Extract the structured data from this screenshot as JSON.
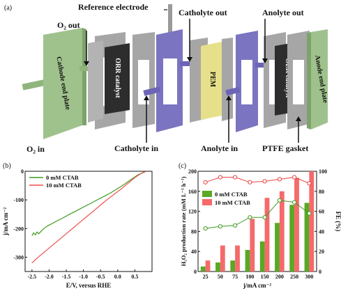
{
  "panel_a": {
    "panel_label": "(a)",
    "labels": {
      "reference_electrode": "Reference electrode",
      "o2_out": "O₂ out",
      "catholyte_out": "Catholyte out",
      "anolyte_out": "Anolyte out",
      "cathode_end_plate": "Cathode end plate",
      "orr_catalyst": "ORR catalyst",
      "pem": "PEM",
      "oer_catalyst": "OER catalyst",
      "anode_end_plate": "Anode end plate",
      "o2_in": "O₂  in",
      "catholyte_in": "Catholyte in",
      "anolyte_in": "Anolyte in",
      "ptfe_gasket": "PTFE gasket"
    },
    "colors": {
      "end_plate": "#9fc28c",
      "gasket": "#a6a6a6",
      "frame": "#7b74c0",
      "catalyst": "#2d2d2d",
      "pem": "#e6e08a"
    }
  },
  "chart_data": [
    {
      "type": "line",
      "panel_label": "(b)",
      "xlabel": "E/V, versus RHE",
      "ylabel": "j/mA cm⁻²",
      "xlim": [
        -2.7,
        1.0
      ],
      "ylim": [
        -350,
        0
      ],
      "xticks": [
        -2.5,
        -2.0,
        -1.5,
        -1.0,
        -0.5,
        0.0,
        0.5
      ],
      "xtick_labels": [
        "-2.5",
        "-2.0",
        "-1.5",
        "-1.0",
        "-0.5",
        "0.0",
        "0.5"
      ],
      "yticks": [
        -300,
        -200,
        -100,
        0
      ],
      "ytick_labels": [
        "-300",
        "-200",
        "-100",
        "0"
      ],
      "legend_position": "top-left",
      "series": [
        {
          "name": "0 mM CTAB",
          "color": "#3d9a1f",
          "x": [
            -2.5,
            -2.45,
            -2.4,
            -2.35,
            -2.3,
            -2.2,
            -2.1,
            -2.0,
            -1.9,
            -1.8,
            -1.6,
            -1.4,
            -1.2,
            -1.0,
            -0.8,
            -0.6,
            -0.4,
            -0.2,
            0.0,
            0.2,
            0.4,
            0.6,
            0.8
          ],
          "y": [
            -225,
            -215,
            -222,
            -212,
            -218,
            -205,
            -195,
            -188,
            -182,
            -175,
            -163,
            -150,
            -138,
            -125,
            -113,
            -100,
            -88,
            -75,
            -60,
            -45,
            -28,
            -12,
            -2
          ]
        },
        {
          "name": "10 mM CTAB",
          "color": "#f0504a",
          "x": [
            -2.5,
            -2.3,
            -2.1,
            -1.9,
            -1.7,
            -1.5,
            -1.3,
            -1.1,
            -0.9,
            -0.7,
            -0.5,
            -0.3,
            -0.1,
            0.1,
            0.3,
            0.5,
            0.7,
            0.8
          ],
          "y": [
            -320,
            -298,
            -278,
            -258,
            -238,
            -218,
            -198,
            -178,
            -158,
            -138,
            -118,
            -98,
            -80,
            -62,
            -42,
            -22,
            -6,
            -1
          ]
        }
      ]
    },
    {
      "type": "bar",
      "panel_label": "(c)",
      "xlabel": "j/mA cm⁻²",
      "ylabel": "H₂O₂ production rate (mM L⁻¹ h⁻¹)",
      "ylabel2": "FE (%)",
      "categories": [
        "25",
        "50",
        "75",
        "100",
        "150",
        "200",
        "250",
        "300"
      ],
      "ylim": [
        0,
        200
      ],
      "yticks": [
        0,
        40,
        80,
        120,
        160,
        200
      ],
      "ylim2": [
        0,
        100
      ],
      "yticks2": [
        0,
        20,
        40,
        60,
        80,
        100
      ],
      "legend_position": "top-left",
      "series": [
        {
          "name": "0 mM CTAB",
          "type": "bar",
          "color": "#5aa826",
          "values": [
            10,
            18,
            22,
            43,
            60,
            97,
            133,
            137
          ]
        },
        {
          "name": "10 mM CTAB",
          "type": "bar",
          "color": "#f56a6a",
          "values": [
            22,
            52,
            52,
            105,
            147,
            160,
            187,
            200
          ]
        },
        {
          "name": "FE 0 mM CTAB",
          "type": "line",
          "axis": "right",
          "color": "#3d9a1f",
          "values": [
            43,
            45,
            46,
            54,
            54,
            71,
            69,
            58
          ]
        },
        {
          "name": "FE 10 mM CTAB",
          "type": "line",
          "axis": "right",
          "color": "#e84040",
          "values": [
            89,
            94,
            94,
            89,
            90,
            92,
            94,
            88
          ]
        }
      ]
    }
  ]
}
